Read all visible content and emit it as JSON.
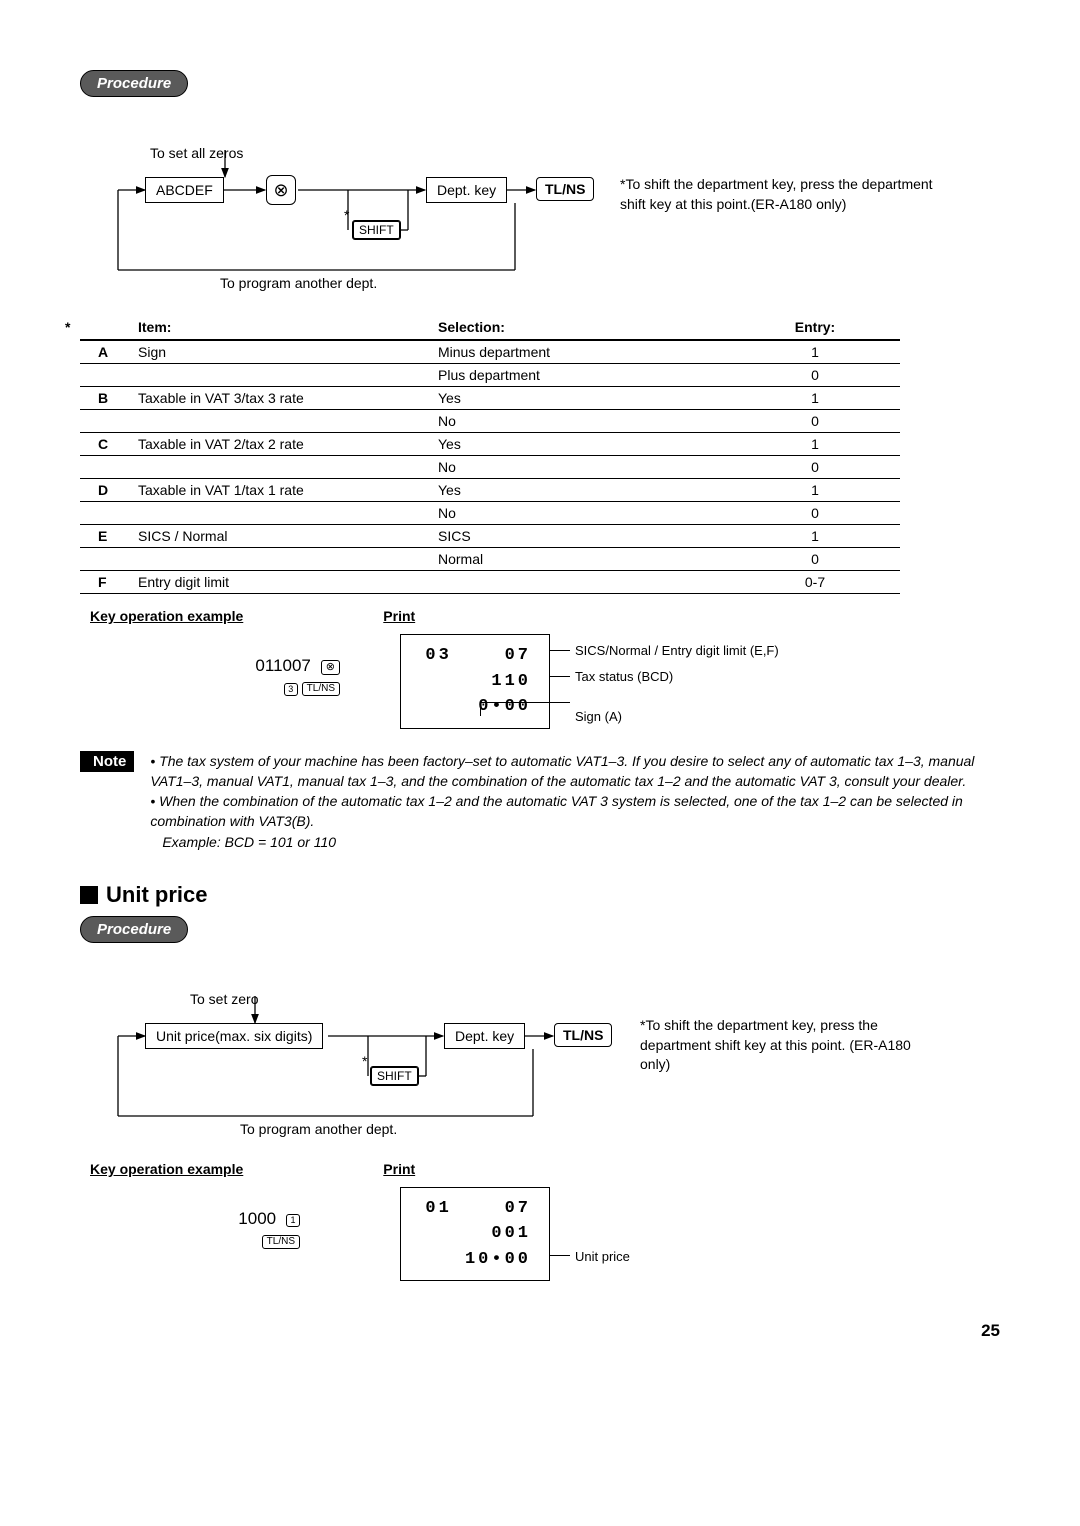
{
  "proc1": {
    "badge": "Procedure",
    "topLabel": "To set all zeros",
    "input": "ABCDEF",
    "circleKey": "⊗",
    "shift": "SHIFT",
    "deptKey": "Dept. key",
    "tlns": "TL/NS",
    "bottomLabel": "To program another dept.",
    "sideNote": "*To shift the department key, press the department shift key at this point.(ER-A180 only)",
    "star": "*"
  },
  "table": {
    "h_item": "Item:",
    "h_sel": "Selection:",
    "h_ent": "Entry:",
    "rows": [
      {
        "l": "A",
        "item": "Sign",
        "sel": "Minus department",
        "ent": "1",
        "border": "mid"
      },
      {
        "l": "",
        "item": "",
        "sel": "Plus department",
        "ent": "0",
        "border": "thick"
      },
      {
        "l": "B",
        "item": "Taxable in VAT 3/tax 3 rate",
        "sel": "Yes",
        "ent": "1",
        "border": "mid"
      },
      {
        "l": "",
        "item": "",
        "sel": "No",
        "ent": "0",
        "border": "thick"
      },
      {
        "l": "C",
        "item": "Taxable in VAT 2/tax 2 rate",
        "sel": "Yes",
        "ent": "1",
        "border": "mid"
      },
      {
        "l": "",
        "item": "",
        "sel": "No",
        "ent": "0",
        "border": "thick"
      },
      {
        "l": "D",
        "item": "Taxable in VAT 1/tax 1 rate",
        "sel": "Yes",
        "ent": "1",
        "border": "mid"
      },
      {
        "l": "",
        "item": "",
        "sel": "No",
        "ent": "0",
        "border": "thick"
      },
      {
        "l": "E",
        "item": "SICS / Normal",
        "sel": "SICS",
        "ent": "1",
        "border": "mid"
      },
      {
        "l": "",
        "item": "",
        "sel": "Normal",
        "ent": "0",
        "border": "thick"
      },
      {
        "l": "F",
        "item": "Entry digit limit",
        "sel": "",
        "ent": "0-7",
        "border": "thick"
      }
    ]
  },
  "kox1": {
    "head": "Key operation example",
    "headPrint": "Print",
    "num": "011007",
    "key1": "⊗",
    "key2sub": "3",
    "key3": "TL/NS",
    "print": [
      "03    07",
      "110",
      "0•00"
    ],
    "annot1": "SICS/Normal / Entry digit limit (E,F)",
    "annot2": "Tax status (BCD)",
    "annot3": "Sign (A)"
  },
  "note": {
    "label": "Note",
    "b1": "The tax system of your machine has been factory–set to automatic VAT1–3. If you desire to select any of automatic tax 1–3, manual VAT1–3, manual VAT1, manual tax 1–3, and the combination of the automatic tax 1–2 and the automatic VAT 3, consult your dealer.",
    "b2": "When the combination of the automatic tax 1–2 and the automatic VAT 3 system is selected, one of the tax 1–2 can be selected in combination with VAT3(B).",
    "b3": "Example: BCD = 101 or 110"
  },
  "unit": {
    "title": "Unit price"
  },
  "proc2": {
    "badge": "Procedure",
    "topLabel": "To set zero",
    "input": "Unit price(max. six digits)",
    "shift": "SHIFT",
    "deptKey": "Dept. key",
    "tlns": "TL/NS",
    "bottomLabel": "To program another dept.",
    "sideNote": "*To shift the department key, press the department shift key at this point.  (ER-A180 only)",
    "star": "*"
  },
  "kox2": {
    "head": "Key operation example",
    "headPrint": "Print",
    "num": "1000",
    "key1sub": "1",
    "key2": "TL/NS",
    "print": [
      "01    07",
      "001",
      "10•00"
    ],
    "annot": "Unit price"
  },
  "pageNumber": "25"
}
